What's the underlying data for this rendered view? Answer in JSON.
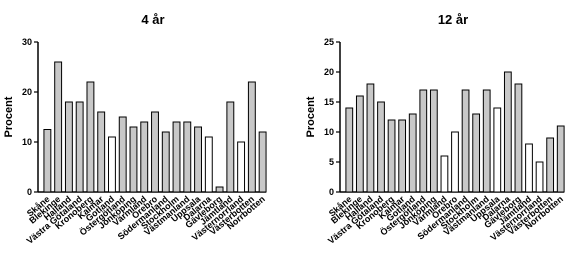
{
  "chart_data": [
    {
      "type": "bar",
      "title": "4 år",
      "y_label": "Procent",
      "categories": [
        "Skåne",
        "Blekinge",
        "Halland",
        "Västra Götaland",
        "Kronoberg",
        "Kalmar",
        "Gotland",
        "Östergötland",
        "Jönköping",
        "Värmland",
        "Örebro",
        "Södermanland",
        "Stockholm",
        "Västmanland",
        "Uppsala",
        "Dalarna",
        "Gävleborg",
        "Jämtland",
        "Västernorrland",
        "Västerbotten",
        "Norrbotten"
      ],
      "values": [
        12.5,
        26,
        18,
        18,
        22,
        16,
        11,
        15,
        13,
        14,
        16,
        12,
        14,
        14,
        13,
        11,
        1,
        18,
        10,
        22,
        12
      ],
      "colors": [
        "#c8c8c8",
        "#c8c8c8",
        "#c8c8c8",
        "#c8c8c8",
        "#c8c8c8",
        "#c8c8c8",
        "#ffffff",
        "#c8c8c8",
        "#c8c8c8",
        "#c8c8c8",
        "#c8c8c8",
        "#c8c8c8",
        "#c8c8c8",
        "#c8c8c8",
        "#c8c8c8",
        "#ffffff",
        "#c8c8c8",
        "#c8c8c8",
        "#ffffff",
        "#c8c8c8",
        "#c8c8c8"
      ],
      "ylim": [
        0,
        30
      ],
      "yticks": [
        0,
        10,
        20,
        30
      ]
    },
    {
      "type": "bar",
      "title": "12 år",
      "y_label": "Procent",
      "categories": [
        "Skåne",
        "Blekinge",
        "Halland",
        "Västra Götaland",
        "Kronoberg",
        "Kalmar",
        "Gotland",
        "Östergötland",
        "Jönköping",
        "Värmland",
        "Örebro",
        "Södermanland",
        "Stockholm",
        "Västmanland",
        "Uppsala",
        "Dalarna",
        "Gävleborg",
        "Jämtland",
        "Västernorrland",
        "Västerbotten",
        "Norrbotten"
      ],
      "values": [
        14,
        16,
        18,
        15,
        12,
        12,
        13,
        17,
        17,
        6,
        10,
        17,
        13,
        17,
        14,
        20,
        18,
        8,
        5,
        9,
        11
      ],
      "colors": [
        "#c8c8c8",
        "#c8c8c8",
        "#c8c8c8",
        "#c8c8c8",
        "#c8c8c8",
        "#c8c8c8",
        "#c8c8c8",
        "#c8c8c8",
        "#c8c8c8",
        "#ffffff",
        "#ffffff",
        "#c8c8c8",
        "#c8c8c8",
        "#c8c8c8",
        "#ffffff",
        "#c8c8c8",
        "#c8c8c8",
        "#ffffff",
        "#ffffff",
        "#c8c8c8",
        "#c8c8c8"
      ],
      "ylim": [
        0,
        25
      ],
      "yticks": [
        0,
        5,
        10,
        15,
        20,
        25
      ]
    }
  ]
}
